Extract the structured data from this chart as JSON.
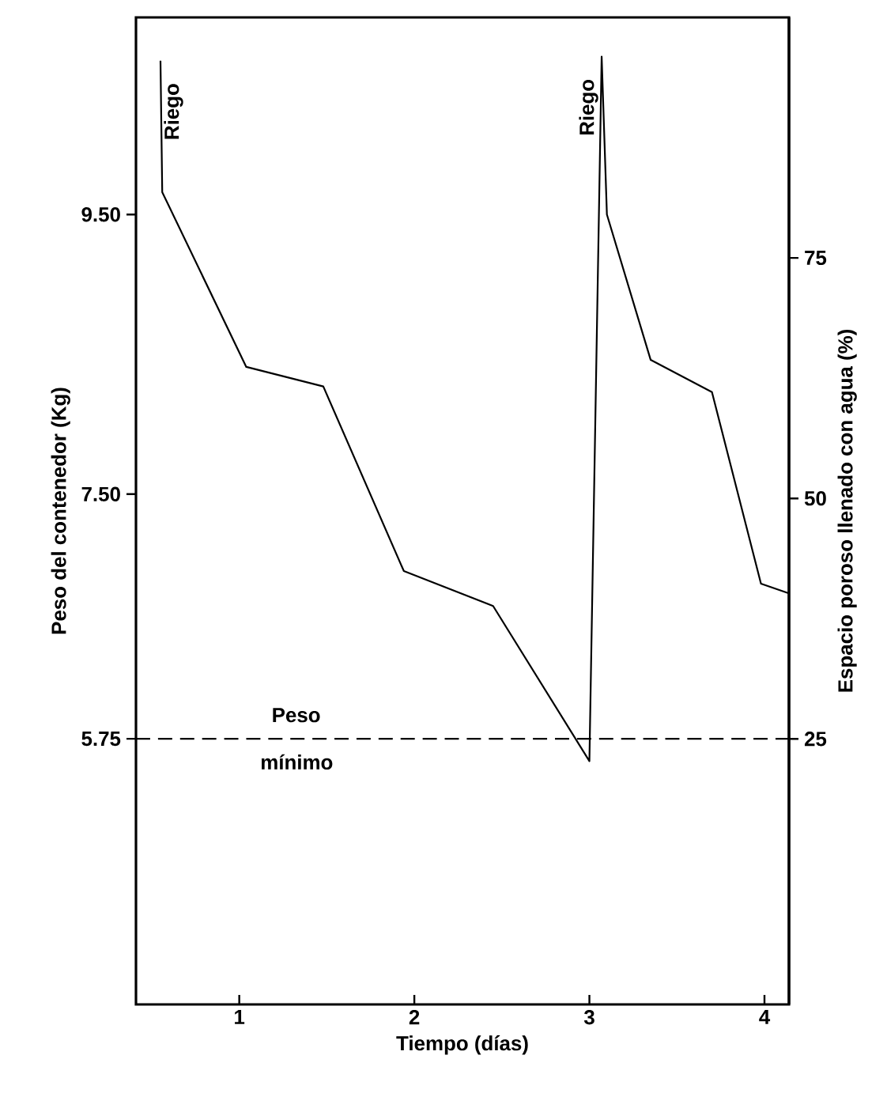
{
  "chart_data": {
    "type": "line",
    "xlabel": "Tiempo (días)",
    "ylabel": "Peso del contenedor (Kg)",
    "y2label": "Espacio poroso llenado con agua (%)",
    "series": [
      {
        "color": "#000000",
        "x": [
          0.55,
          0.56,
          1.04,
          1.48,
          1.94,
          2.45,
          3.0,
          3.07,
          3.1,
          3.35,
          3.7,
          3.98,
          4.14
        ],
        "values": [
          10.6,
          9.66,
          8.41,
          8.27,
          6.95,
          6.7,
          5.59,
          10.63,
          9.5,
          8.46,
          8.23,
          6.86,
          6.79
        ]
      }
    ],
    "xlim": [
      0.41,
      4.14
    ],
    "xticks": [
      1,
      2,
      3,
      4
    ],
    "ylim": [
      3.85,
      10.91
    ],
    "yticks": [
      {
        "value": 5.75,
        "label": "5.75"
      },
      {
        "value": 7.5,
        "label": "7.50"
      },
      {
        "value": 9.5,
        "label": "9.50"
      }
    ],
    "y2lim": [
      -2.6,
      100
    ],
    "y2ticks": [
      25,
      50,
      75
    ],
    "marker": "none",
    "line_style": "solid",
    "ref_lines": [
      {
        "axis": "y",
        "value": 5.75,
        "label": "Peso mínimo",
        "line_style": "dashed",
        "color": "#000000"
      }
    ],
    "annotations": [
      "Riego",
      "Riego"
    ]
  }
}
